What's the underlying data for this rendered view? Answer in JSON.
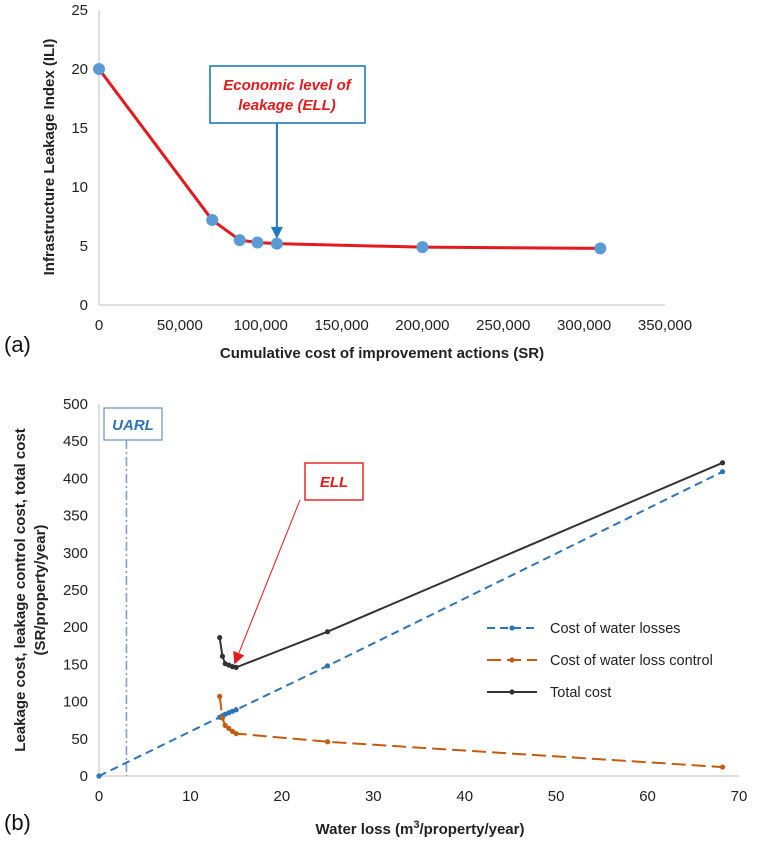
{
  "chart_data": [
    {
      "panel_label": "(a)",
      "type": "line",
      "xlabel": "Cumulative cost of improvement actions (SR)",
      "ylabel": "Infrastructure Leakage Index (ILI)",
      "xlim": [
        0,
        350000
      ],
      "ylim": [
        0,
        25
      ],
      "x_ticks": [
        0,
        50000,
        100000,
        150000,
        200000,
        250000,
        300000,
        350000
      ],
      "x_tick_labels": [
        "0",
        "50,000",
        "100,000",
        "150,000",
        "200,000",
        "250,000",
        "300,000",
        "350,000"
      ],
      "y_ticks": [
        0,
        5,
        10,
        15,
        20,
        25
      ],
      "y_tick_labels": [
        "0",
        "5",
        "10",
        "15",
        "20",
        "25"
      ],
      "grid": false,
      "series": [
        {
          "x": [
            0,
            70000,
            87000,
            98000,
            110000,
            200000,
            310000
          ],
          "y": [
            20,
            7.2,
            5.5,
            5.3,
            5.2,
            4.9,
            4.8
          ],
          "line_color": "#e31a1c",
          "marker_color": "#5b9bd5"
        }
      ],
      "annotation": {
        "text": "Economic level of leakage (ELL)",
        "text_lines": [
          "Economic level of",
          "leakage (ELL)"
        ],
        "text_color": "#e31a1c",
        "box_color": "#1f7bbf",
        "arrow_target_x": 110000,
        "arrow_target_y": 5.6
      }
    },
    {
      "panel_label": "(b)",
      "type": "line",
      "xlabel": "Water loss (m3/property/year)",
      "xlabel_parts": [
        "Water loss (m",
        "3",
        "/property/year)"
      ],
      "ylabel": "Leakage cost, leakage control cost, total cost (SR/property/year)",
      "ylabel_lines": [
        "Leakage cost, leakage control cost, total cost",
        "(SR/property/year)"
      ],
      "xlim": [
        0,
        70
      ],
      "ylim": [
        0,
        500
      ],
      "x_ticks": [
        0,
        10,
        20,
        30,
        40,
        50,
        60,
        70
      ],
      "x_tick_labels": [
        "0",
        "10",
        "20",
        "30",
        "40",
        "50",
        "60",
        "70"
      ],
      "y_ticks": [
        0,
        50,
        100,
        150,
        200,
        250,
        300,
        350,
        400,
        450,
        500
      ],
      "y_tick_labels": [
        "0",
        "50",
        "100",
        "150",
        "200",
        "250",
        "300",
        "350",
        "400",
        "450",
        "500"
      ],
      "grid": false,
      "legend_position": "right",
      "series": [
        {
          "name": "Cost of water losses",
          "color": "#2e75b6",
          "dash": "dashed",
          "x": [
            0,
            13.2,
            13.5,
            13.8,
            14.2,
            14.6,
            15.0,
            25.0,
            68.2
          ],
          "y": [
            0,
            79,
            81,
            83,
            85,
            87,
            89,
            148,
            409
          ]
        },
        {
          "name": "Cost of water loss control",
          "color": "#c55a11",
          "dash": "long-dashed",
          "x": [
            13.2,
            13.5,
            13.8,
            14.2,
            14.6,
            15.0,
            25.0,
            68.2
          ],
          "y": [
            107,
            78,
            68,
            64,
            60,
            57,
            46,
            12
          ]
        },
        {
          "name": "Total cost",
          "color": "#333333",
          "dash": "solid",
          "x": [
            13.2,
            13.5,
            13.8,
            14.2,
            14.6,
            15.0,
            25.0,
            68.2
          ],
          "y": [
            186,
            161,
            151,
            149,
            147,
            146,
            194,
            421
          ]
        }
      ],
      "uarl": {
        "label": "UARL",
        "x": 3.0,
        "color": "#7f9fc7",
        "text_color": "#2e75b6"
      },
      "ell": {
        "label": "ELL",
        "color": "#e31a1c",
        "arrow_target_x": 14.8,
        "arrow_target_y": 150
      }
    }
  ]
}
